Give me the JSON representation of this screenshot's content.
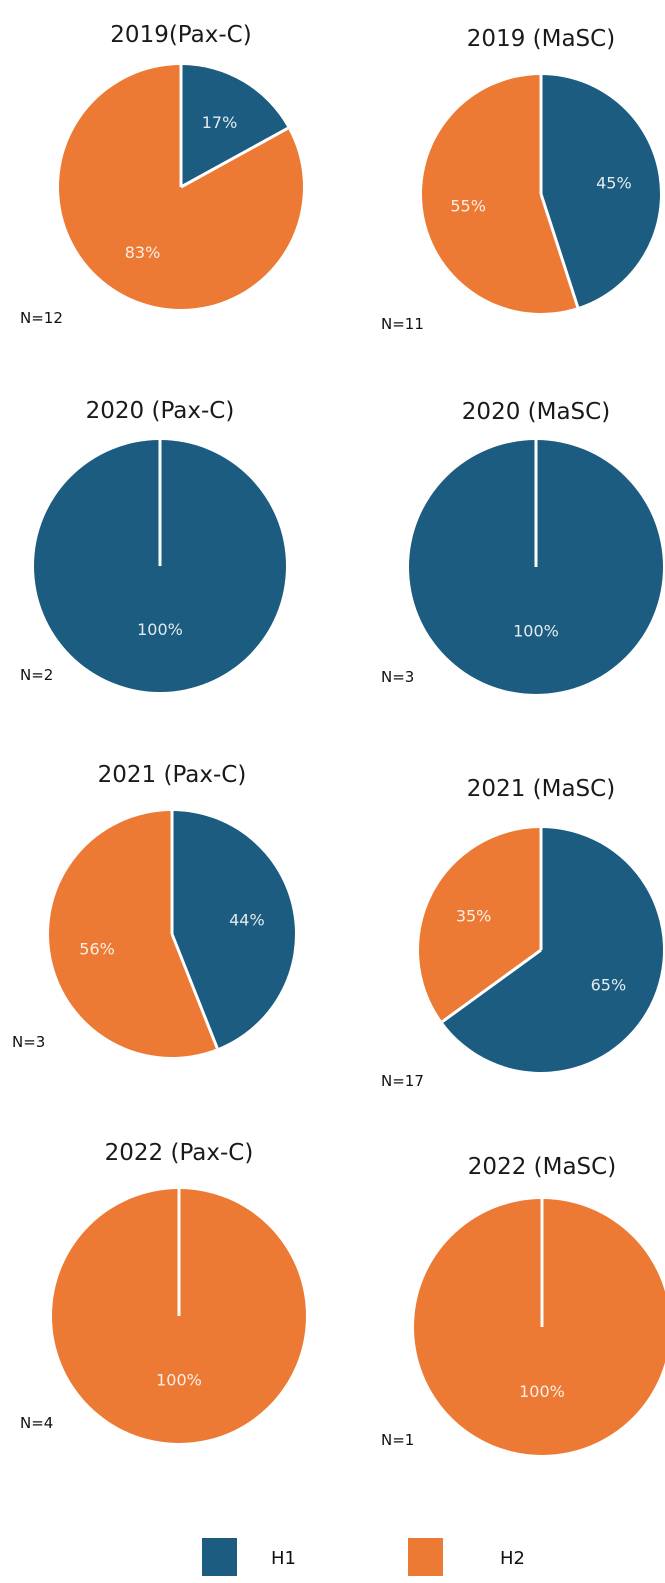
{
  "colors": {
    "H1": "#1b5c80",
    "H2": "#ec7a34",
    "divider": "#ffffff"
  },
  "legend": [
    {
      "name": "H1",
      "color": "#1b5c80"
    },
    {
      "name": "H2",
      "color": "#ec7a34"
    }
  ],
  "chart_data": [
    {
      "type": "pie",
      "title": "2019(Pax-C)",
      "n_label": "N=12",
      "slices": [
        {
          "name": "H1",
          "value": 17,
          "label": "17%"
        },
        {
          "name": "H2",
          "value": 83,
          "label": "83%"
        }
      ]
    },
    {
      "type": "pie",
      "title": "2019 (MaSC)",
      "n_label": "N=11",
      "slices": [
        {
          "name": "H1",
          "value": 45,
          "label": "45%"
        },
        {
          "name": "H2",
          "value": 55,
          "label": "55%"
        }
      ]
    },
    {
      "type": "pie",
      "title": "2020 (Pax-C)",
      "n_label": "N=2",
      "slices": [
        {
          "name": "H1",
          "value": 100,
          "label": "100%"
        }
      ]
    },
    {
      "type": "pie",
      "title": "2020 (MaSC)",
      "n_label": "N=3",
      "slices": [
        {
          "name": "H1",
          "value": 100,
          "label": "100%"
        }
      ]
    },
    {
      "type": "pie",
      "title": "2021 (Pax-C)",
      "n_label": "N=3",
      "slices": [
        {
          "name": "H1",
          "value": 44,
          "label": "44%"
        },
        {
          "name": "H2",
          "value": 56,
          "label": "56%"
        }
      ]
    },
    {
      "type": "pie",
      "title": "2021 (MaSC)",
      "n_label": "N=17",
      "slices": [
        {
          "name": "H1",
          "value": 65,
          "label": "65%"
        },
        {
          "name": "H2",
          "value": 35,
          "label": "35%"
        }
      ]
    },
    {
      "type": "pie",
      "title": "2022 (Pax-C)",
      "n_label": "N=4",
      "slices": [
        {
          "name": "H2",
          "value": 100,
          "label": "100%"
        }
      ]
    },
    {
      "type": "pie",
      "title": "2022 (MaSC)",
      "n_label": "N=1",
      "slices": [
        {
          "name": "H2",
          "value": 100,
          "label": "100%"
        }
      ]
    }
  ]
}
